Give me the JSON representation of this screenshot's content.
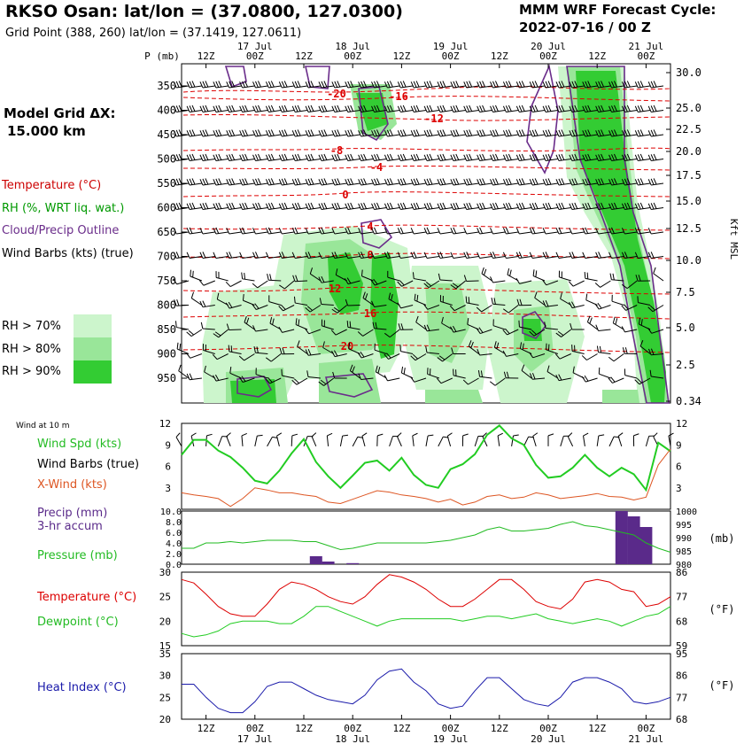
{
  "header": {
    "title": "RKSO Osan:  lat/lon = (37.0800, 127.0300)",
    "grid_point": "Grid Point (388, 260) lat/lon = (37.1419, 127.0611)",
    "cycle_title": "MMM WRF Forecast Cycle:",
    "cycle_value": "2022-07-16 / 00  Z",
    "model_grid_line1": "Model Grid ΔX:",
    "model_grid_line2": "15.000 km"
  },
  "legend": {
    "temperature": "Temperature (°C)",
    "rh": "RH (%, WRT liq. wat.)",
    "cloud": "Cloud/Precip Outline",
    "barbs": "Wind Barbs (kts) (true)",
    "rh70": "RH > 70%",
    "rh80": "RH > 80%",
    "rh90": "RH > 90%"
  },
  "colors": {
    "rh70": "#ccf5cc",
    "rh80": "#99e699",
    "rh90": "#33cc33",
    "temperature": "#dd0000",
    "cloud": "#6a2c8a",
    "rh_line": "#22cc22",
    "xwind": "#dd5522",
    "pressure": "#22bb22",
    "precip": "#5a2a8a",
    "heat_index": "#1a1aaa"
  },
  "time_axis": {
    "top_days": [
      "17 Jul",
      "18 Jul",
      "19 Jul",
      "20 Jul",
      "21 Jul"
    ],
    "top_hours": [
      "12Z",
      "00Z",
      "12Z",
      "00Z",
      "12Z",
      "00Z",
      "12Z",
      "00Z",
      "12Z",
      "00Z"
    ],
    "bottom_hours": [
      "12Z",
      "00Z",
      "12Z",
      "00Z",
      "12Z",
      "00Z",
      "12Z",
      "00Z",
      "12Z",
      "00Z"
    ],
    "bottom_days": [
      "17 Jul",
      "18 Jul",
      "19 Jul",
      "20 Jul",
      "21 Jul"
    ]
  },
  "cross_section": {
    "p_label": "P (mb)",
    "pressure_levels": [
      "350",
      "400",
      "450",
      "500",
      "550",
      "600",
      "650",
      "700",
      "750",
      "800",
      "850",
      "900",
      "950"
    ],
    "height_labels": [
      "30.0",
      "25.0",
      "22.5",
      "20.0",
      "17.5",
      "15.0",
      "12.5",
      "10.0",
      "7.5",
      "5.0",
      "2.5",
      "0.34"
    ],
    "height_axis_label": "Kft MSL",
    "temp_labels": [
      "-20",
      "-16",
      "-12",
      "-8",
      "-4",
      "0",
      "4",
      "8",
      "12",
      "16",
      "20"
    ]
  },
  "panels": {
    "wind_header": "Wind at 10 m",
    "wind_spd": "Wind Spd (kts)",
    "wind_barbs": "Wind Barbs (true)",
    "xwind": "X-Wind (kts)",
    "precip": "Precip (mm)",
    "precip2": "3-hr accum",
    "pressure": "Pressure (mb)",
    "temperature": "Temperature (°C)",
    "dewpoint": "Dewpoint (°C)",
    "heat_index": "Heat Index (°C)",
    "wind_ticks": [
      "12",
      "9",
      "6",
      "3"
    ],
    "precip_ticks": [
      "10.0",
      "8.0",
      "6.0",
      "4.0",
      "2.0",
      "0.0"
    ],
    "pressure_ticks": [
      "1000",
      "995",
      "990",
      "985",
      "980"
    ],
    "pressure_unit": "(mb)",
    "temp_ticks_c": [
      "30",
      "25",
      "20",
      "15"
    ],
    "temp_ticks_f": [
      "86",
      "77",
      "68",
      "59"
    ],
    "f_unit": "(°F)",
    "hi_ticks_c": [
      "35",
      "30",
      "25",
      "20"
    ],
    "hi_ticks_f": [
      "95",
      "86",
      "77",
      "68"
    ]
  },
  "chart_data": {
    "type": "line",
    "x_hours": [
      0,
      3,
      6,
      9,
      12,
      15,
      18,
      21,
      24,
      27,
      30,
      33,
      36,
      39,
      42,
      45,
      48,
      51,
      54,
      57,
      60,
      63,
      66,
      69,
      72,
      75,
      78,
      81,
      84,
      87,
      90,
      93,
      96,
      99,
      102,
      105,
      108,
      111,
      114,
      117,
      120
    ],
    "series": [
      {
        "name": "Wind Spd (kts)",
        "values": [
          7.6,
          9.7,
          9.7,
          8.2,
          7.3,
          5.8,
          4.0,
          3.6,
          5.4,
          7.8,
          9.8,
          6.6,
          4.6,
          3.0,
          4.7,
          6.5,
          6.8,
          5.4,
          7.2,
          4.8,
          3.4,
          3.0,
          5.6,
          6.3,
          7.7,
          10.4,
          11.7,
          9.9,
          9.0,
          6.2,
          4.4,
          4.6,
          5.8,
          7.6,
          5.8,
          4.6,
          5.8,
          4.9,
          2.7,
          9.3,
          8.1
        ]
      },
      {
        "name": "X-Wind (kts)",
        "values": [
          2.3,
          2.0,
          1.8,
          1.5,
          0.4,
          1.5,
          3.0,
          2.7,
          2.3,
          2.3,
          2.0,
          1.8,
          1.0,
          0.8,
          1.4,
          2.0,
          2.6,
          2.4,
          2.0,
          1.8,
          1.5,
          1.0,
          1.4,
          0.6,
          1.0,
          1.8,
          2.0,
          1.5,
          1.7,
          2.3,
          2.0,
          1.5,
          1.7,
          1.9,
          2.2,
          1.8,
          1.7,
          1.3,
          1.7,
          6.2,
          8.4
        ]
      },
      {
        "name": "Pressure (mb)",
        "values": [
          986,
          986,
          988,
          988,
          988.5,
          988,
          988.5,
          989,
          989,
          989,
          988.5,
          988.5,
          987,
          985.5,
          986,
          987,
          988,
          988,
          988,
          988,
          988,
          988.5,
          989,
          990,
          991,
          993,
          994,
          992.5,
          992.5,
          993,
          993.5,
          995,
          996,
          994.5,
          994,
          993,
          992,
          991,
          988,
          986,
          984.5
        ]
      },
      {
        "name": "Precip (mm)",
        "values": [
          0,
          0,
          0,
          0,
          0,
          0,
          0,
          0,
          0,
          0,
          0,
          1.5,
          0.5,
          0,
          0.2,
          0,
          0,
          0,
          0,
          0,
          0,
          0,
          0,
          0,
          0,
          0,
          0,
          0,
          0,
          0,
          0,
          0,
          0,
          0,
          0,
          0,
          10.5,
          9.0,
          7.0,
          0,
          0
        ]
      },
      {
        "name": "Temperature (°C)",
        "values": [
          28.5,
          27.8,
          25.5,
          23.0,
          21.5,
          21.0,
          21.0,
          23.5,
          26.5,
          28.0,
          27.5,
          26.5,
          25.0,
          24.0,
          23.5,
          25.0,
          27.5,
          29.5,
          29.0,
          28.0,
          26.5,
          24.5,
          23.0,
          23.0,
          24.5,
          26.5,
          28.5,
          28.5,
          26.5,
          24.0,
          23.0,
          22.5,
          24.5,
          28.0,
          28.5,
          28.0,
          26.5,
          26.0,
          23.0,
          23.5,
          25.0
        ]
      },
      {
        "name": "Dewpoint (°C)",
        "values": [
          17.5,
          16.8,
          17.2,
          18.0,
          19.5,
          20.0,
          20.0,
          20.0,
          19.5,
          19.5,
          21.0,
          23.0,
          23.0,
          22.0,
          21.0,
          20.0,
          19.0,
          20.0,
          20.5,
          20.5,
          20.5,
          20.5,
          20.5,
          20.0,
          20.5,
          21.0,
          21.0,
          20.5,
          21.0,
          21.5,
          20.5,
          20.0,
          19.5,
          20.0,
          20.5,
          20.0,
          19.0,
          20.0,
          21.0,
          21.5,
          23.0
        ]
      },
      {
        "name": "Heat Index (°C)",
        "values": [
          28.0,
          28.0,
          25.0,
          22.5,
          21.5,
          21.5,
          24.0,
          27.5,
          28.5,
          28.5,
          27.0,
          25.5,
          24.5,
          24.0,
          23.5,
          25.5,
          29.0,
          31.0,
          31.5,
          28.5,
          26.5,
          23.5,
          22.5,
          23.0,
          26.5,
          29.5,
          29.5,
          27.0,
          24.5,
          23.5,
          23.0,
          25.0,
          28.5,
          29.5,
          29.5,
          28.5,
          27.0,
          24.0,
          23.5,
          24.0,
          25.0
        ]
      }
    ],
    "cross_section_levels_mb": [
      350,
      400,
      450,
      500,
      550,
      600,
      650,
      700,
      750,
      800,
      850,
      900,
      950
    ],
    "ylims": {
      "wind_kts": [
        0,
        12
      ],
      "precip_mm": [
        0,
        10
      ],
      "pressure_mb": [
        980,
        1000
      ],
      "temperature_c": [
        15,
        30
      ],
      "heat_index_c": [
        20,
        35
      ]
    }
  }
}
